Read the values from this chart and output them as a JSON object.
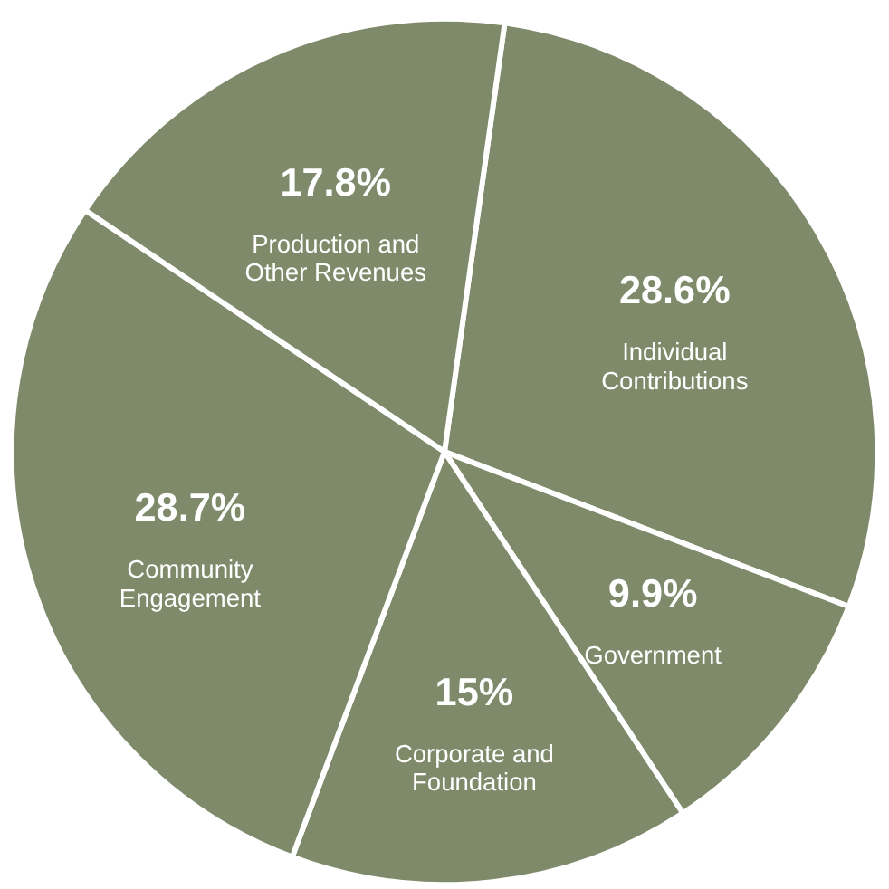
{
  "chart_data": {
    "type": "pie",
    "categories": [
      "Individual Contributions",
      "Government",
      "Corporate and Foundation",
      "Community Engagement",
      "Production and Other Revenues"
    ],
    "values": [
      28.6,
      9.9,
      15,
      28.7,
      17.8
    ],
    "value_labels": [
      "28.6%",
      "9.9%",
      "15%",
      "28.7%",
      "17.8%"
    ],
    "colors": [
      "#7f8a6b",
      "#7f8a6b",
      "#7f8a6b",
      "#7f8a6b",
      "#7f8a6b"
    ],
    "legend": false
  }
}
